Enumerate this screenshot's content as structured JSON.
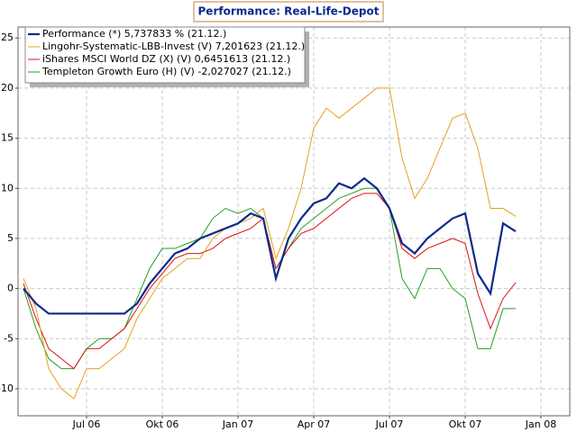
{
  "chart_data": {
    "type": "line",
    "title": "Performance: Real-Life-Depot",
    "categories": [
      null,
      null,
      null,
      null,
      null,
      "Jul 06",
      null,
      null,
      null,
      null,
      null,
      "Okt 06",
      null,
      null,
      null,
      null,
      null,
      "Jan 07",
      null,
      null,
      null,
      null,
      null,
      "Apr 07",
      null,
      null,
      null,
      null,
      null,
      "Jul 07",
      null,
      null,
      null,
      null,
      null,
      "Okt 07",
      null,
      null,
      null,
      null,
      null,
      "Jan 08",
      null
    ],
    "series": [
      {
        "name": "Performance (*) 5,737833 % (21.12.)",
        "color": "#0a2a8c",
        "values": [
          0,
          -1.5,
          -2.5,
          -2.5,
          -2.5,
          -2.5,
          -2.5,
          -2.5,
          -2.5,
          -1.5,
          0.5,
          2,
          3.5,
          4,
          5,
          5.5,
          6,
          6.5,
          7.5,
          7,
          1,
          5,
          7,
          8.5,
          9,
          10.5,
          10,
          11,
          10,
          8,
          4.5,
          3.5,
          5,
          6,
          7,
          7.5,
          1.5,
          -0.5,
          6.5,
          5.7,
          null,
          null,
          null
        ]
      },
      {
        "name": "Lingohr-Systematic-LBB-Invest (V) 7,201623 (21.12.)",
        "color": "#e8a020",
        "values": [
          1,
          -2,
          -8,
          -10,
          -11,
          -8,
          -8,
          -7,
          -6,
          -3,
          -1,
          1,
          2,
          3,
          3,
          5,
          6,
          6.5,
          7,
          8,
          3,
          6,
          10,
          16,
          18,
          17,
          18,
          19,
          20,
          20,
          13,
          9,
          11,
          14,
          17,
          17.5,
          14,
          8,
          8,
          7.2,
          null,
          null,
          null
        ]
      },
      {
        "name": "iShares MSCI World DZ (X) (V) 0,6451613 (21.12.)",
        "color": "#e01010",
        "values": [
          0.5,
          -3,
          -6,
          -7,
          -8,
          -6,
          -6,
          -5,
          -4,
          -2,
          0,
          1.5,
          3,
          3.5,
          3.5,
          4,
          5,
          5.5,
          6,
          7,
          2,
          4,
          5.5,
          6,
          7,
          8,
          9,
          9.5,
          9.5,
          8,
          4,
          3,
          4,
          4.5,
          5,
          4.5,
          -0.5,
          -4,
          -1,
          0.6,
          null,
          null,
          null
        ]
      },
      {
        "name": "Templeton Growth Euro (H) (V) -2,027027 (21.12.)",
        "color": "#20a020",
        "values": [
          0,
          -4,
          -7,
          -8,
          -8,
          -6,
          -5,
          -5,
          -4,
          -1,
          2,
          4,
          4,
          4.5,
          5,
          7,
          8,
          7.5,
          8,
          7,
          2,
          4,
          6,
          7,
          8,
          9,
          9.5,
          10,
          10,
          8,
          1,
          -1,
          2,
          2,
          0,
          -1,
          -6,
          -6,
          -2,
          -2,
          null,
          null,
          null
        ]
      }
    ],
    "ylim": [
      -12.7,
      26.1
    ],
    "yticks": [
      -10,
      -5,
      0,
      5,
      10,
      15,
      20,
      25
    ],
    "grid": true
  }
}
